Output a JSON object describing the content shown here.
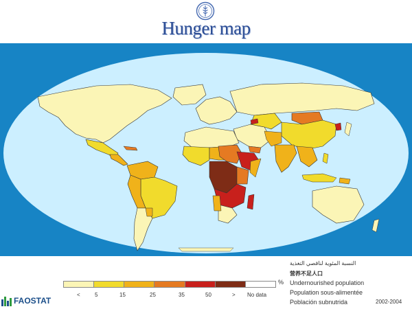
{
  "header": {
    "title": "Hunger map"
  },
  "legend": {
    "unit": "%",
    "ticks": [
      "<",
      "5",
      "15",
      "25",
      "35",
      "50",
      ">",
      "No data"
    ],
    "colors": [
      "#fbf5b6",
      "#f1db2c",
      "#f0b21a",
      "#e57a22",
      "#c8201c",
      "#7e2c16",
      "#ffffff"
    ],
    "title_arabic": "النسبة المئوية لناقصي التغذية",
    "title_chinese": "营养不足人口",
    "title_english": "Undernourished population",
    "title_french": "Population sous-alimentée",
    "title_spanish": "Población subnutrida",
    "period": "2002-2004"
  },
  "brand": {
    "faostat": "FAOSTAT",
    "fao_logo": "fao-wheat-emblem"
  },
  "colors": {
    "ocean": "#ccefff",
    "map_frame": "#1784c5",
    "title": "#2e4f96"
  }
}
